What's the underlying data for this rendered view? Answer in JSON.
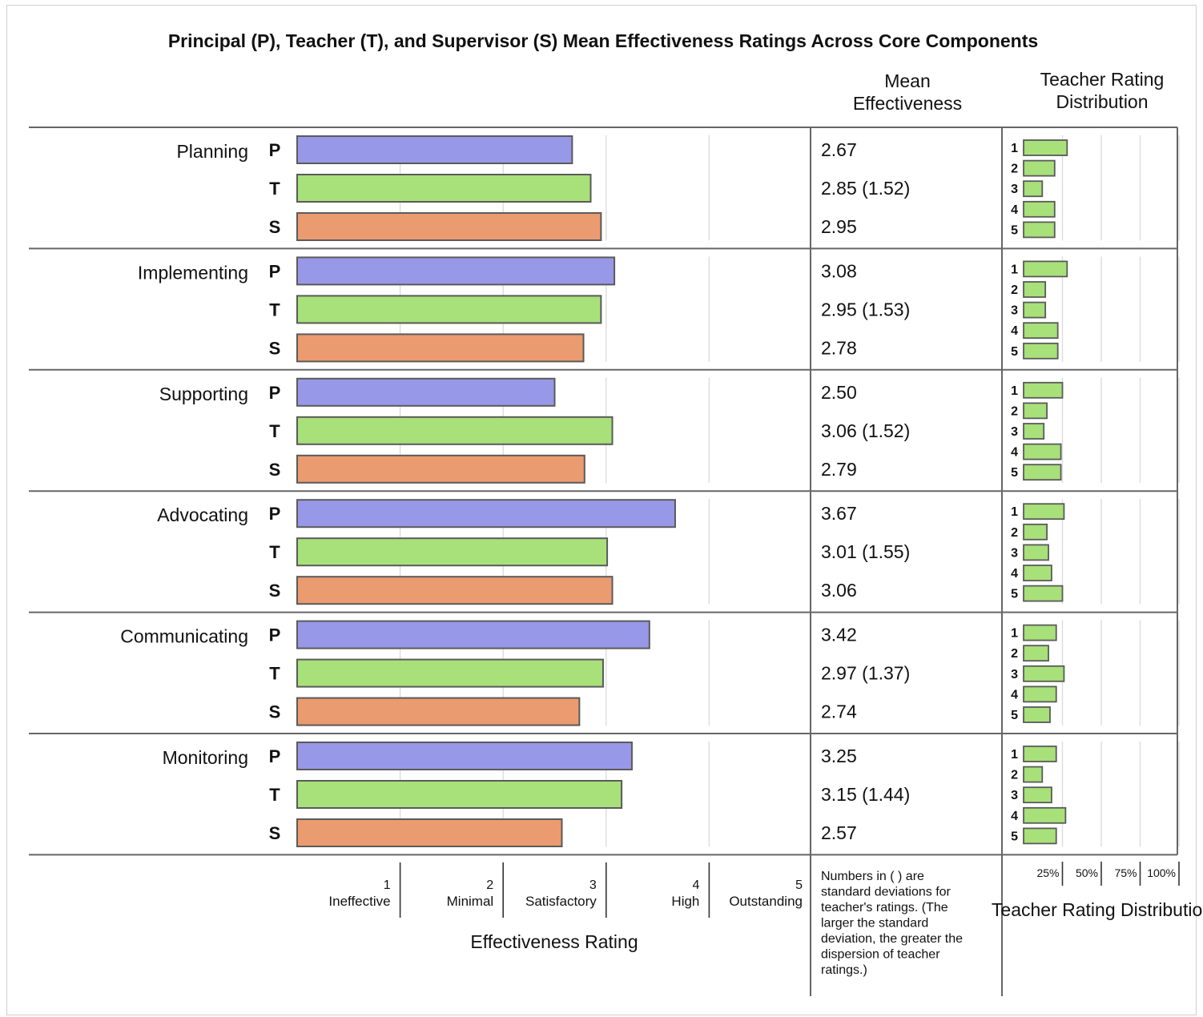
{
  "chart_data": {
    "type": "bar",
    "title": "Principal (P), Teacher (T), and Supervisor (S) Mean Effectiveness Ratings Across Core Components",
    "mean_header": "Mean Effectiveness",
    "dist_header": "Teacher Rating Distribution",
    "x_axis_label": "Effectiveness Rating",
    "xlim": [
      0,
      5
    ],
    "dist_xlim": [
      0,
      100
    ],
    "rater_codes": [
      "P",
      "T",
      "S"
    ],
    "scale": [
      {
        "value": "1",
        "label": "Ineffective"
      },
      {
        "value": "2",
        "label": "Minimal"
      },
      {
        "value": "3",
        "label": "Satisfactory"
      },
      {
        "value": "4",
        "label": "High"
      },
      {
        "value": "5",
        "label": "Outstanding"
      }
    ],
    "dist_levels": [
      "1",
      "2",
      "3",
      "4",
      "5"
    ],
    "dist_ticks": [
      {
        "value": 25,
        "label": "25%"
      },
      {
        "value": 50,
        "label": "50%"
      },
      {
        "value": 75,
        "label": "75%"
      },
      {
        "value": 100,
        "label": "100%"
      }
    ],
    "footnote": "Numbers in ( ) are standard deviations for teacher's ratings. (The larger the standard deviation, the greater the dispersion of teacher ratings.)",
    "components": [
      {
        "name": "Planning",
        "ratings": [
          {
            "rater": "P",
            "value": 2.67,
            "text": "2.67"
          },
          {
            "rater": "T",
            "value": 2.85,
            "text": "2.85 (1.52)"
          },
          {
            "rater": "S",
            "value": 2.95,
            "text": "2.95"
          }
        ],
        "distribution": [
          28,
          20,
          12,
          20,
          20
        ]
      },
      {
        "name": "Implementing",
        "ratings": [
          {
            "rater": "P",
            "value": 3.08,
            "text": "3.08"
          },
          {
            "rater": "T",
            "value": 2.95,
            "text": "2.95 (1.53)"
          },
          {
            "rater": "S",
            "value": 2.78,
            "text": "2.78"
          }
        ],
        "distribution": [
          28,
          14,
          14,
          22,
          22
        ]
      },
      {
        "name": "Supporting",
        "ratings": [
          {
            "rater": "P",
            "value": 2.5,
            "text": "2.50"
          },
          {
            "rater": "T",
            "value": 3.06,
            "text": "3.06 (1.52)"
          },
          {
            "rater": "S",
            "value": 2.79,
            "text": "2.79"
          }
        ],
        "distribution": [
          25,
          15,
          13,
          24,
          24
        ]
      },
      {
        "name": "Advocating",
        "ratings": [
          {
            "rater": "P",
            "value": 3.67,
            "text": "3.67"
          },
          {
            "rater": "T",
            "value": 3.01,
            "text": "3.01 (1.55)"
          },
          {
            "rater": "S",
            "value": 3.06,
            "text": "3.06"
          }
        ],
        "distribution": [
          26,
          15,
          16,
          18,
          25
        ]
      },
      {
        "name": "Communicating",
        "ratings": [
          {
            "rater": "P",
            "value": 3.42,
            "text": "3.42"
          },
          {
            "rater": "T",
            "value": 2.97,
            "text": "2.97 (1.37)"
          },
          {
            "rater": "S",
            "value": 2.74,
            "text": "2.74"
          }
        ],
        "distribution": [
          21,
          16,
          26,
          21,
          17
        ]
      },
      {
        "name": "Monitoring",
        "ratings": [
          {
            "rater": "P",
            "value": 3.25,
            "text": "3.25"
          },
          {
            "rater": "T",
            "value": 3.15,
            "text": "3.15 (1.44)"
          },
          {
            "rater": "S",
            "value": 2.57,
            "text": "2.57"
          }
        ],
        "distribution": [
          21,
          12,
          18,
          27,
          21
        ]
      }
    ],
    "colors": {
      "P": "#9898e8",
      "T": "#a8e07a",
      "S": "#eb9b70",
      "dist": "#a8e07a",
      "bar_stroke": "#5a5a5a",
      "gridline": "#dcdcdc",
      "rule": "#666666",
      "frame": "#cfcfcf"
    }
  }
}
